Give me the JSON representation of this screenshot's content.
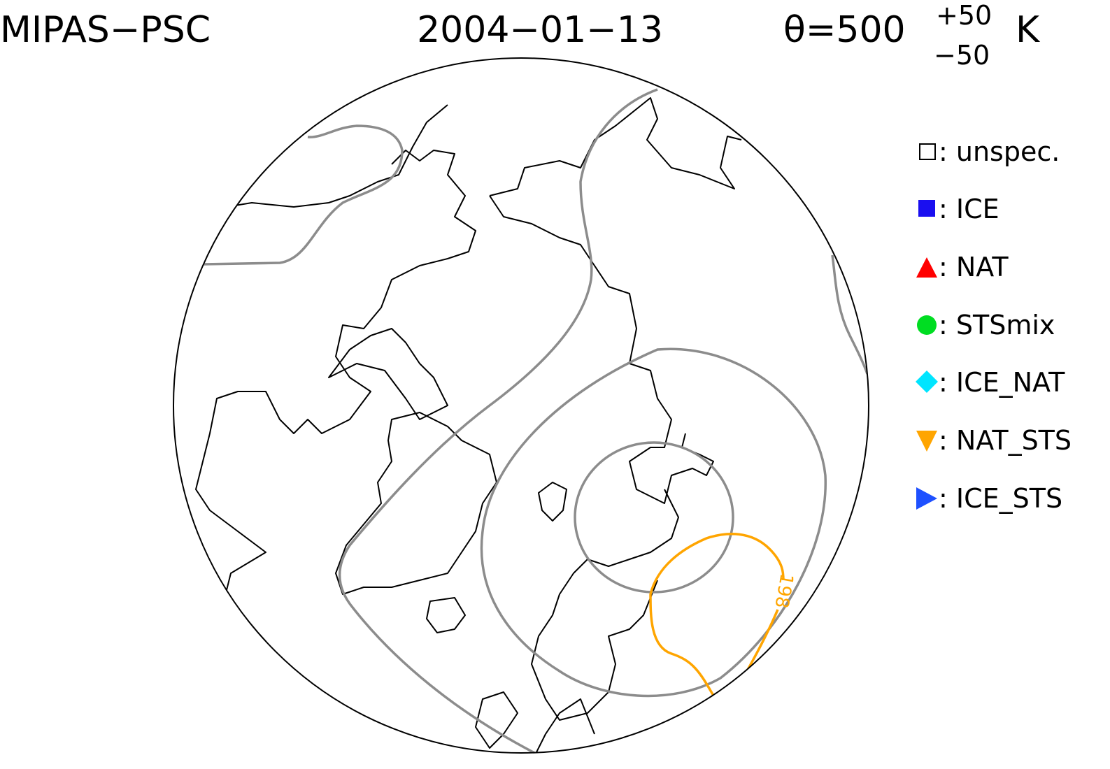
{
  "header": {
    "instrument": "MIPAS−PSC",
    "date": "2004−01−13",
    "theta": "θ=500",
    "theta_upper": "+50",
    "theta_lower": "−50",
    "unit": "K"
  },
  "legend": [
    ": unspec.",
    ": ICE",
    ": NAT",
    ": STSmix",
    ": ICE_NAT",
    ": NAT_STS",
    ": ICE_STS"
  ],
  "contour_label": "198"
}
